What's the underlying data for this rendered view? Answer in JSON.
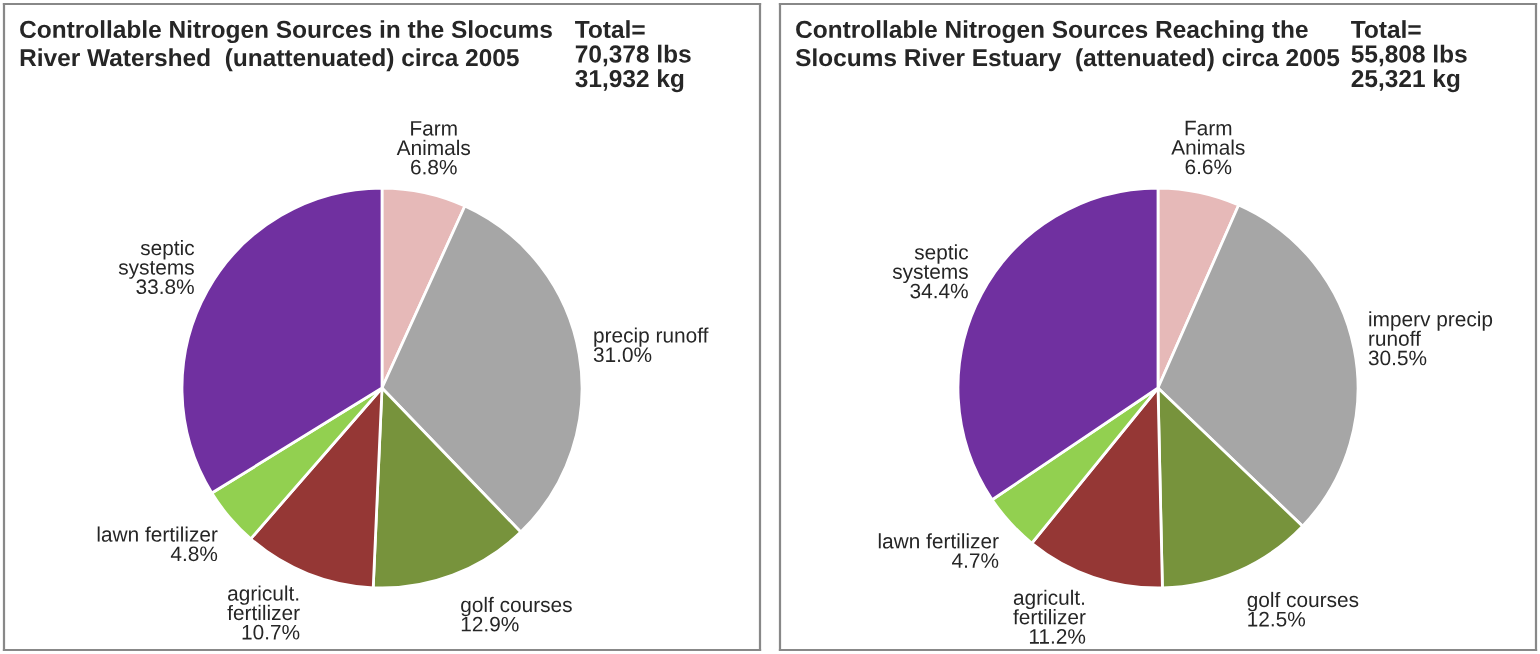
{
  "chart_data": [
    {
      "type": "pie",
      "title": "Controllable Nitrogen Sources in the Slocums\nRiver Watershed  (unattenuated) circa 2005",
      "annotations": [
        "Total=\n70,378 lbs\n31,932 kg"
      ],
      "categories": [
        "Farm\nAnimals",
        "precip runoff",
        "golf courses",
        "agricult.\nfertilizer",
        "lawn fertilizer",
        "septic\nsystems"
      ],
      "values": [
        6.8,
        31.0,
        12.9,
        10.7,
        4.8,
        33.8
      ],
      "value_labels": [
        "6.8%",
        "31.0%",
        "12.9%",
        "10.7%",
        "4.8%",
        "33.8%"
      ],
      "colors": [
        "#e6b9b8",
        "#a6a6a6",
        "#77933c",
        "#953735",
        "#92d050",
        "#7030a0"
      ]
    },
    {
      "type": "pie",
      "title": "Controllable Nitrogen Sources Reaching the\nSlocums River Estuary  (attenuated) circa 2005",
      "annotations": [
        "Total=\n55,808 lbs\n25,321 kg"
      ],
      "categories": [
        "Farm\nAnimals",
        "imperv precip\nrunoff",
        "golf courses",
        "agricult.\nfertilizer",
        "lawn fertilizer",
        "septic\nsystems"
      ],
      "values": [
        6.6,
        30.5,
        12.5,
        11.2,
        4.7,
        34.4
      ],
      "value_labels": [
        "6.6%",
        "30.5%",
        "12.5%",
        "11.2%",
        "4.7%",
        "34.4%"
      ],
      "colors": [
        "#e6b9b8",
        "#a6a6a6",
        "#77933c",
        "#953735",
        "#92d050",
        "#7030a0"
      ]
    }
  ]
}
